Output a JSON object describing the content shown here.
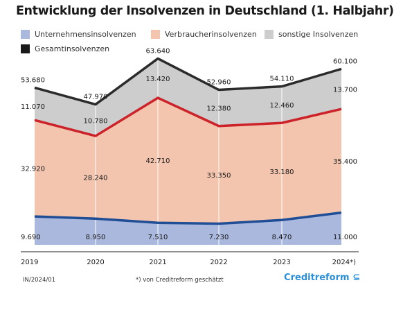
{
  "chart_data": {
    "type": "area",
    "title": "Entwicklung der Insolvenzen in Deutschland (1. Halbjahr)",
    "categories": [
      "2019",
      "2020",
      "2021",
      "2022",
      "2023",
      "2024*)"
    ],
    "series": [
      {
        "name": "Unternehmensinsolvenzen",
        "values": [
          9690,
          8950,
          7510,
          7230,
          8470,
          11000
        ],
        "labels": [
          "9.690",
          "8.950",
          "7.510",
          "7.230",
          "8.470",
          "11.000"
        ],
        "color": "#a9b8dc",
        "line": "#1f4e96"
      },
      {
        "name": "Verbraucherinsolvenzen",
        "values": [
          32920,
          28240,
          42710,
          33350,
          33180,
          35400
        ],
        "labels": [
          "32.920",
          "28.240",
          "42.710",
          "33.350",
          "33.180",
          "35.400"
        ],
        "color": "#f3c4ae",
        "line": "#cc2229"
      },
      {
        "name": "sonstige Insolvenzen",
        "values": [
          11070,
          10780,
          13420,
          12380,
          12460,
          13700
        ],
        "labels": [
          "11.070",
          "10.780",
          "13.420",
          "12.380",
          "12.460",
          "13.700"
        ],
        "color": "#cdcdcd",
        "line": null
      },
      {
        "name": "Gesamtinsolvenzen",
        "values": [
          53680,
          47970,
          63640,
          52960,
          54110,
          60100
        ],
        "labels": [
          "53.680",
          "47.970",
          "63.640",
          "52.960",
          "54.110",
          "60.100"
        ],
        "color": "#1a1a1a",
        "line": "#2b2b2b"
      }
    ],
    "ylim": [
      0,
      70000
    ],
    "grid": false,
    "legend": "top"
  },
  "footer": {
    "source": "IN/2024/01",
    "note": "*) von Creditreform geschätzt",
    "brand": "Creditreform"
  }
}
